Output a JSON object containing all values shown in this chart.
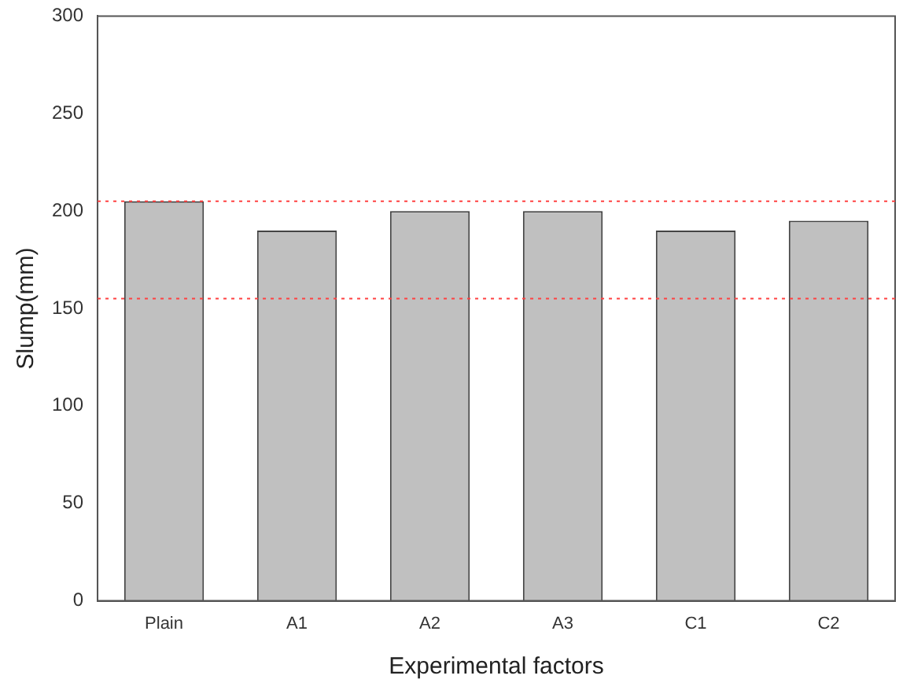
{
  "chart_data": {
    "type": "bar",
    "xlabel": "Experimental factors",
    "ylabel": "Slump(mm)",
    "categories": [
      "Plain",
      "A1",
      "A2",
      "A3",
      "C1",
      "C2"
    ],
    "values": [
      205,
      190,
      200,
      200,
      190,
      195
    ],
    "color": "#c0c0c0",
    "ylim": [
      0,
      300
    ],
    "yticks": [
      0,
      50,
      100,
      150,
      200,
      250,
      300
    ],
    "grid": false,
    "legend": false,
    "ref_lines": [
      {
        "axis": "y",
        "value": 205,
        "color": "#ff4040",
        "line_style": "dotted"
      },
      {
        "axis": "y",
        "value": 155,
        "color": "#ff4040",
        "line_style": "dotted"
      }
    ]
  }
}
